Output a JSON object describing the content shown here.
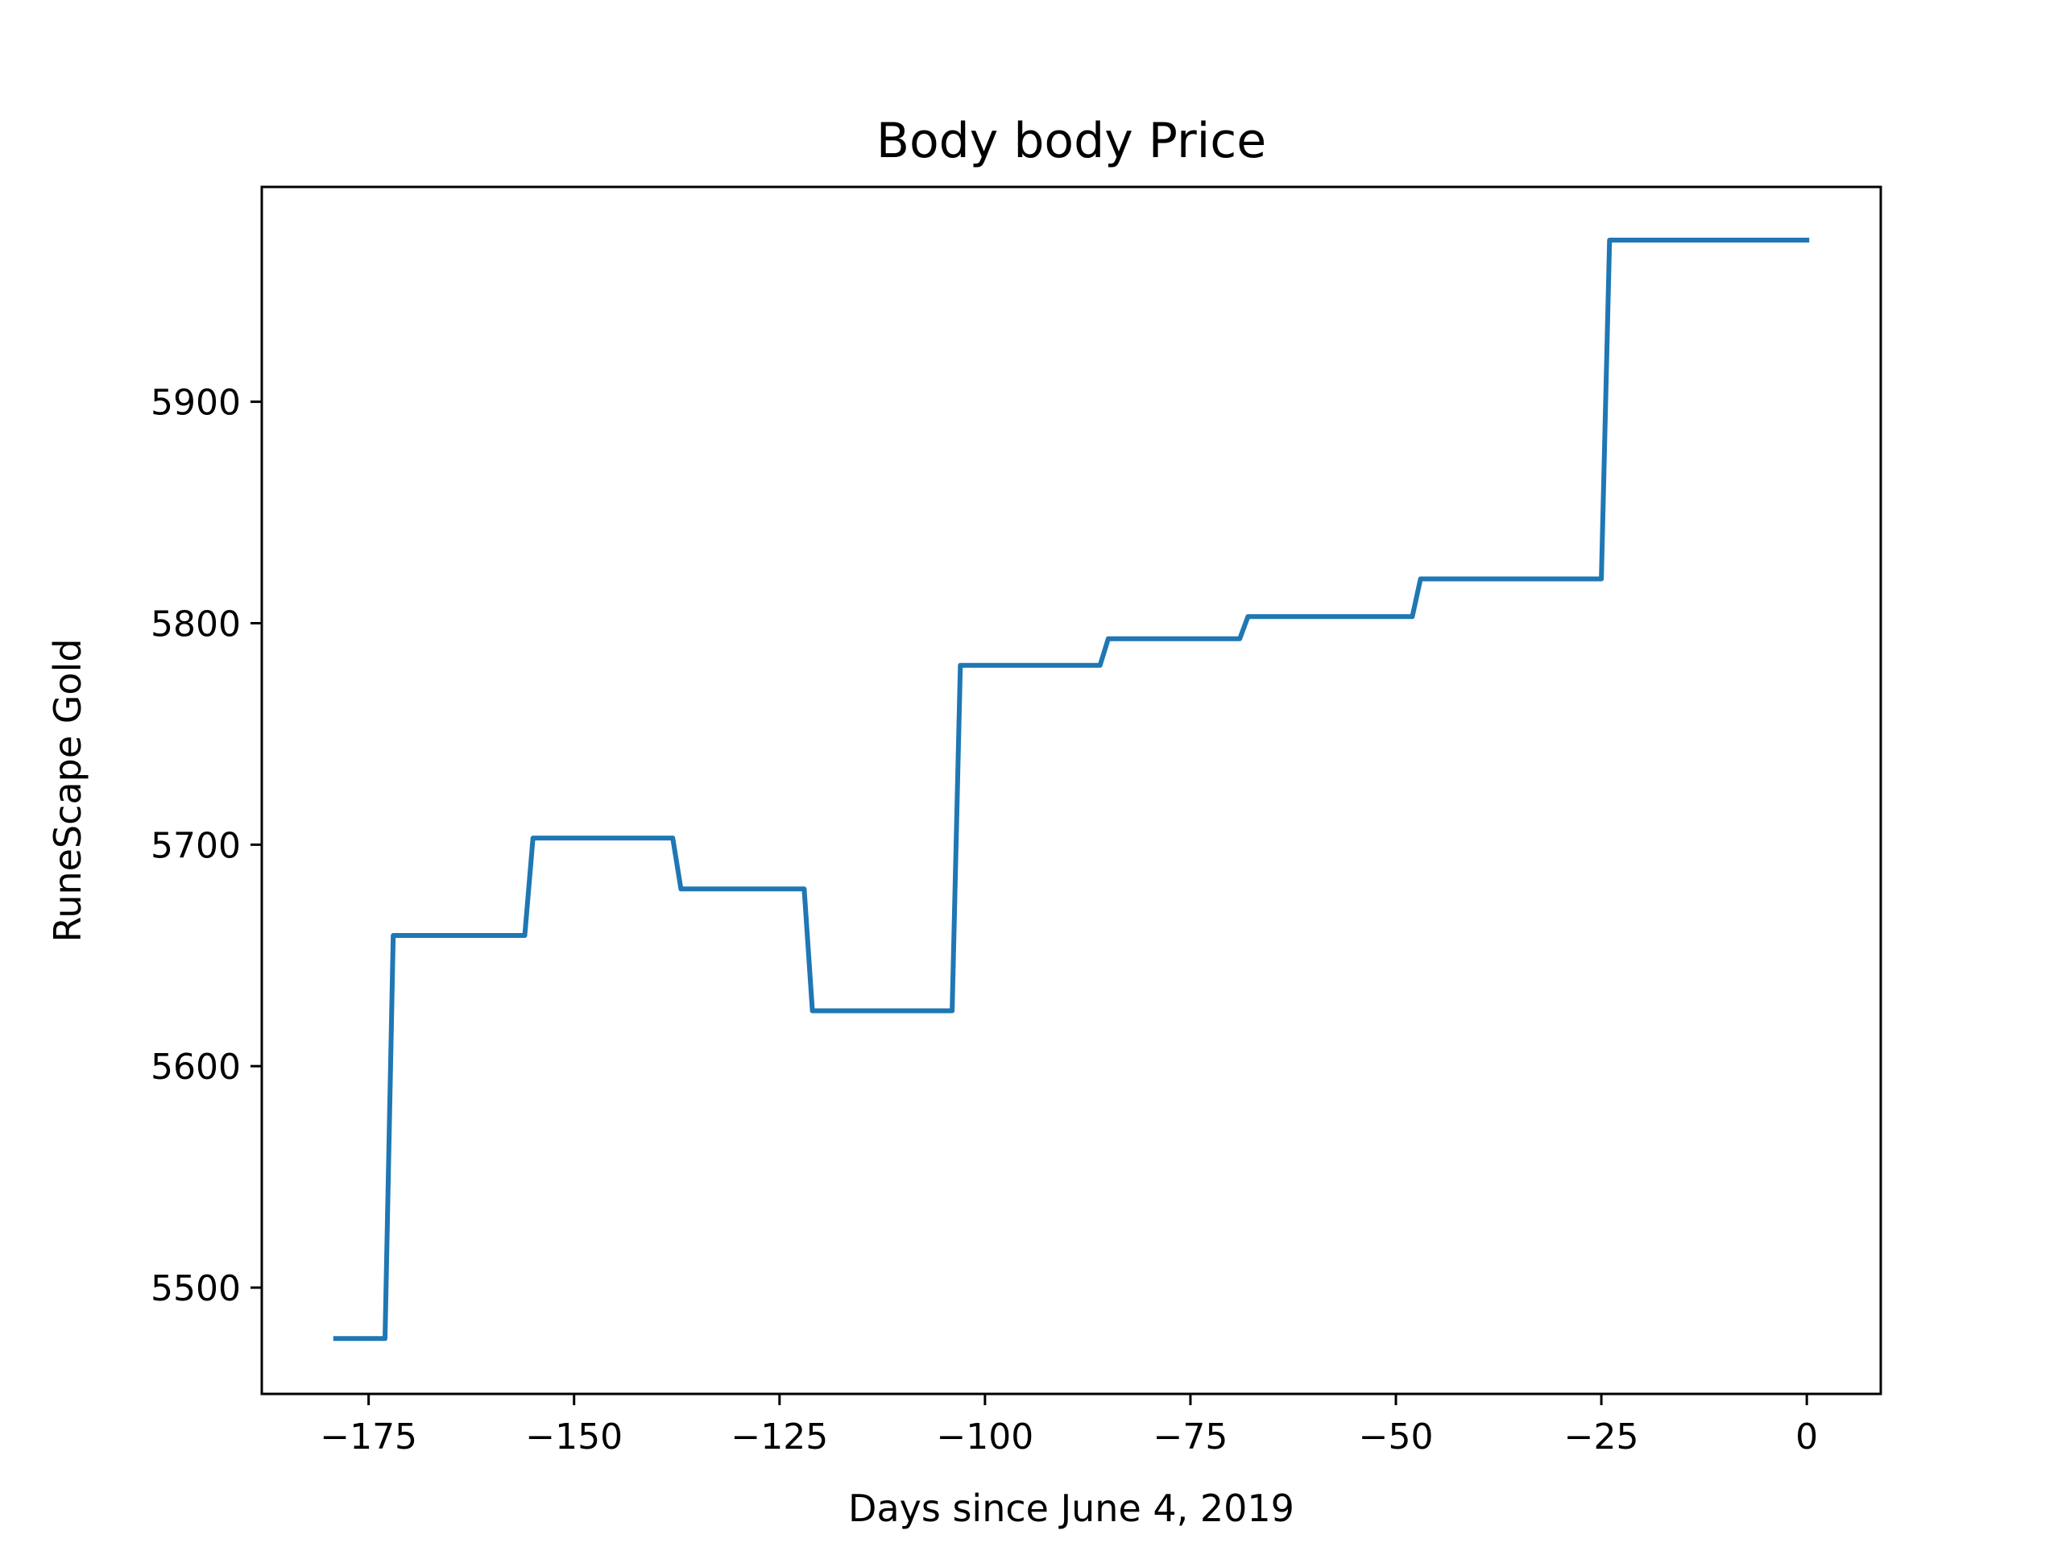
{
  "chart_data": {
    "type": "line",
    "title": "Body body Price",
    "xlabel": "Days since June 4, 2019",
    "ylabel": "RuneScape Gold",
    "xlim": [
      -188,
      9
    ],
    "ylim": [
      5452,
      5997
    ],
    "xticks": [
      -175,
      -150,
      -125,
      -100,
      -75,
      -50,
      -25,
      0
    ],
    "xtick_labels": [
      "−175",
      "−150",
      "−125",
      "−100",
      "−75",
      "−50",
      "−25",
      "0"
    ],
    "yticks": [
      5500,
      5600,
      5700,
      5800,
      5900
    ],
    "ytick_labels": [
      "5500",
      "5600",
      "5700",
      "5800",
      "5900"
    ],
    "grid": false,
    "series": [
      {
        "color": "#1f77b4",
        "x": [
          -179,
          -173,
          -172,
          -156,
          -155,
          -138,
          -137,
          -122,
          -121,
          -104,
          -103,
          -86,
          -85,
          -69,
          -68,
          -48,
          -47,
          -25,
          -24,
          0
        ],
        "y": [
          5477,
          5477,
          5659,
          5659,
          5703,
          5703,
          5680,
          5680,
          5625,
          5625,
          5781,
          5781,
          5793,
          5793,
          5803,
          5803,
          5820,
          5820,
          5973,
          5973
        ]
      }
    ]
  }
}
